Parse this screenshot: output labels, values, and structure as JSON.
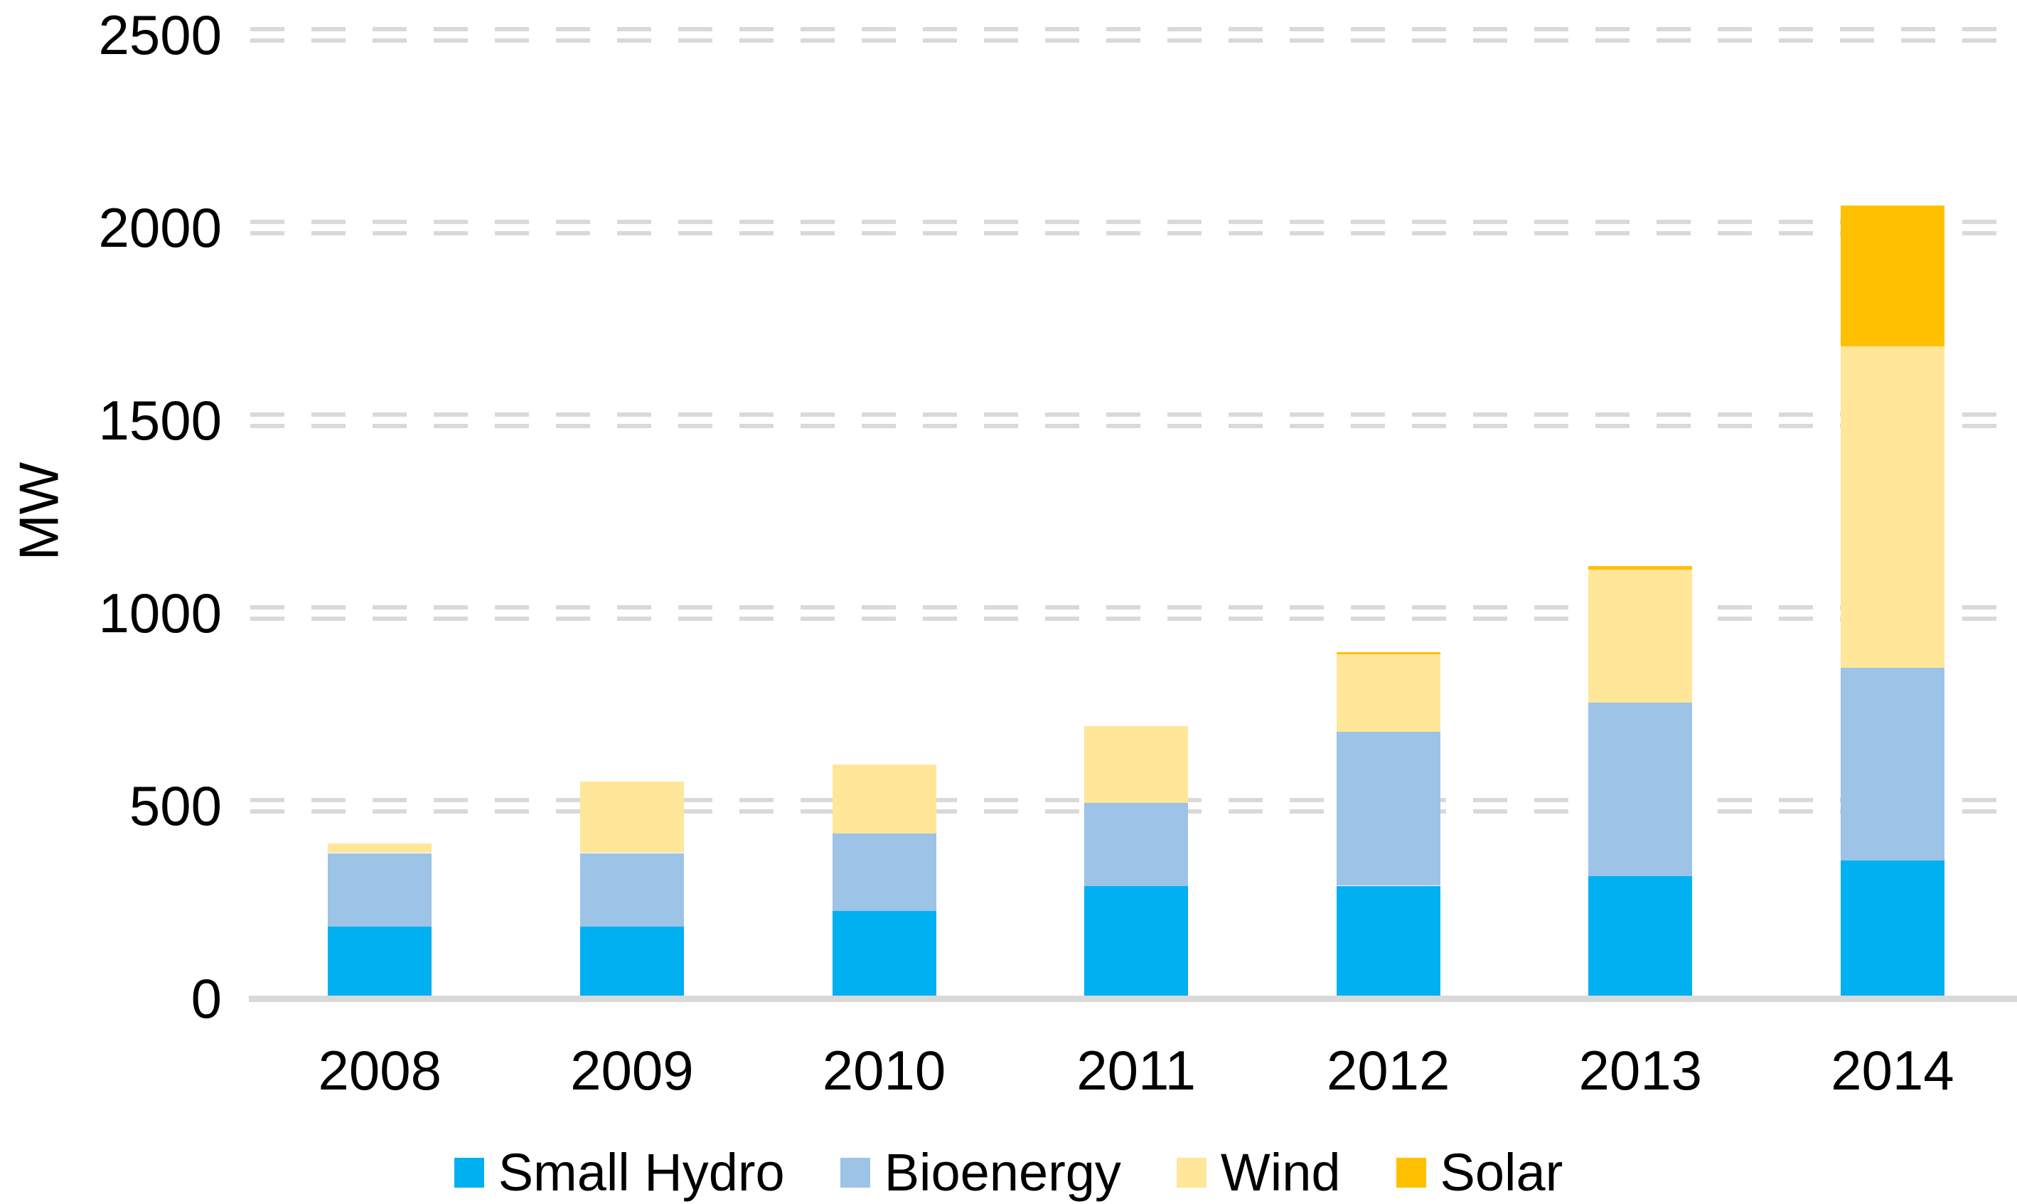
{
  "chart_data": {
    "type": "bar",
    "stacked": true,
    "title": "",
    "xlabel": "",
    "ylabel": "MW",
    "ylim": [
      0,
      2500
    ],
    "ytick_interval": 500,
    "yticks": [
      0,
      500,
      1000,
      1500,
      2000,
      2500
    ],
    "grid": "horizontal-dashed-double",
    "legend_position": "bottom",
    "categories": [
      "2008",
      "2009",
      "2010",
      "2011",
      "2012",
      "2013",
      "2014"
    ],
    "series": [
      {
        "name": "Small Hydro",
        "color": "#00B0F0",
        "values": [
          180,
          180,
          220,
          285,
          285,
          310,
          350
        ]
      },
      {
        "name": "Bioenergy",
        "color": "#9DC3E6",
        "values": [
          190,
          190,
          200,
          215,
          400,
          450,
          500
        ]
      },
      {
        "name": "Wind",
        "color": "#FFE699",
        "values": [
          25,
          185,
          180,
          200,
          200,
          345,
          835
        ]
      },
      {
        "name": "Solar",
        "color": "#FFC000",
        "values": [
          0,
          0,
          0,
          0,
          7,
          10,
          365
        ]
      }
    ],
    "totals": [
      395,
      555,
      600,
      700,
      892,
      1115,
      2050
    ]
  },
  "colors": {
    "gridline": "#D9D9D9",
    "axis_line": "#D9D9D9",
    "text": "#000000",
    "background": "#FFFFFF"
  }
}
